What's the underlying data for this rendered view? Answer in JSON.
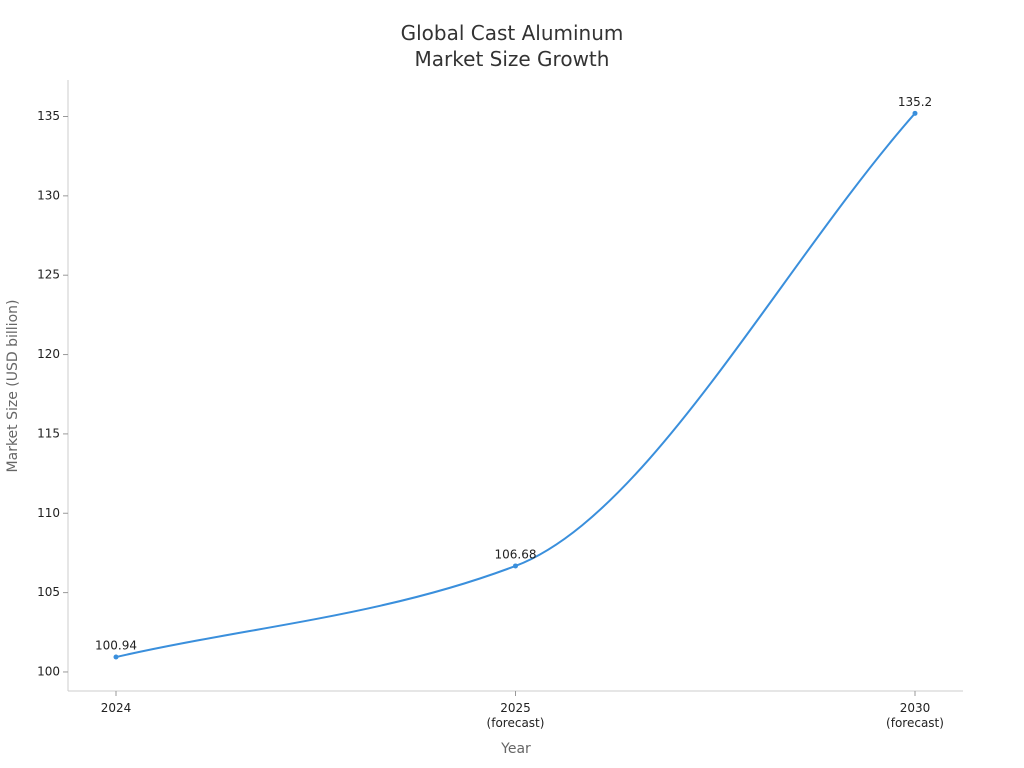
{
  "chart_data": {
    "type": "line",
    "title": "Global Cast Aluminum\nMarket Size Growth",
    "x_label": "Year",
    "y_label": "Market Size (USD billion)",
    "categories": [
      "2024",
      "2025\n(forecast)",
      "2030\n(forecast)"
    ],
    "series": [
      {
        "name": "Market Size",
        "color": "#3a8fdc",
        "values": [
          100.94,
          106.68,
          135.2
        ]
      }
    ],
    "ylim": [
      98.8,
      137.3
    ],
    "yticks": [
      100,
      105,
      110,
      115,
      120,
      125,
      130,
      135
    ],
    "grid": false
  }
}
